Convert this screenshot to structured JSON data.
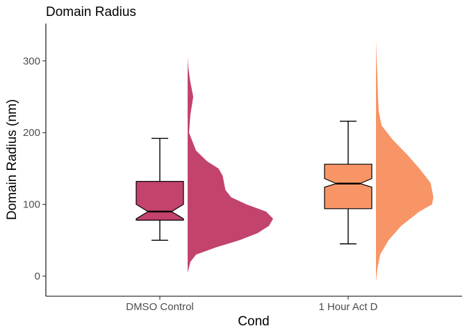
{
  "chart_data": {
    "type": "raincloud",
    "title": "Domain Radius",
    "xlabel": "Cond",
    "ylabel": "Domain Radius (nm)",
    "ylim": [
      -28,
      352
    ],
    "yticks": [
      0,
      100,
      200,
      300
    ],
    "categories": [
      "DMSO Control",
      "1 Hour Act D"
    ],
    "groups": [
      {
        "name": "DMSO Control",
        "color": "#C2436C",
        "box": {
          "whisker_low": 50,
          "q1": 78,
          "median": 90,
          "q3": 132,
          "whisker_high": 192,
          "notch_low": 80,
          "notch_high": 100
        },
        "density": [
          [
            5,
            0
          ],
          [
            20,
            4
          ],
          [
            30,
            12
          ],
          [
            40,
            40
          ],
          [
            50,
            74
          ],
          [
            60,
            100
          ],
          [
            70,
            116
          ],
          [
            80,
            122
          ],
          [
            90,
            112
          ],
          [
            100,
            84
          ],
          [
            110,
            62
          ],
          [
            120,
            54
          ],
          [
            130,
            52
          ],
          [
            140,
            50
          ],
          [
            150,
            44
          ],
          [
            160,
            28
          ],
          [
            175,
            12
          ],
          [
            200,
            2
          ],
          [
            225,
            4
          ],
          [
            250,
            8
          ],
          [
            270,
            4
          ],
          [
            290,
            1
          ],
          [
            305,
            0
          ]
        ]
      },
      {
        "name": "1 Hour Act D",
        "color": "#F89566",
        "box": {
          "whisker_low": 45,
          "q1": 94,
          "median": 129,
          "q3": 156,
          "whisker_high": 216,
          "notch_low": 124,
          "notch_high": 136
        },
        "density": [
          [
            -8,
            0
          ],
          [
            10,
            2
          ],
          [
            30,
            6
          ],
          [
            50,
            18
          ],
          [
            70,
            36
          ],
          [
            90,
            62
          ],
          [
            100,
            80
          ],
          [
            110,
            82
          ],
          [
            130,
            78
          ],
          [
            150,
            62
          ],
          [
            170,
            44
          ],
          [
            190,
            24
          ],
          [
            210,
            8
          ],
          [
            230,
            4
          ],
          [
            250,
            3
          ],
          [
            280,
            2
          ],
          [
            300,
            1
          ],
          [
            330,
            0
          ]
        ]
      }
    ]
  }
}
